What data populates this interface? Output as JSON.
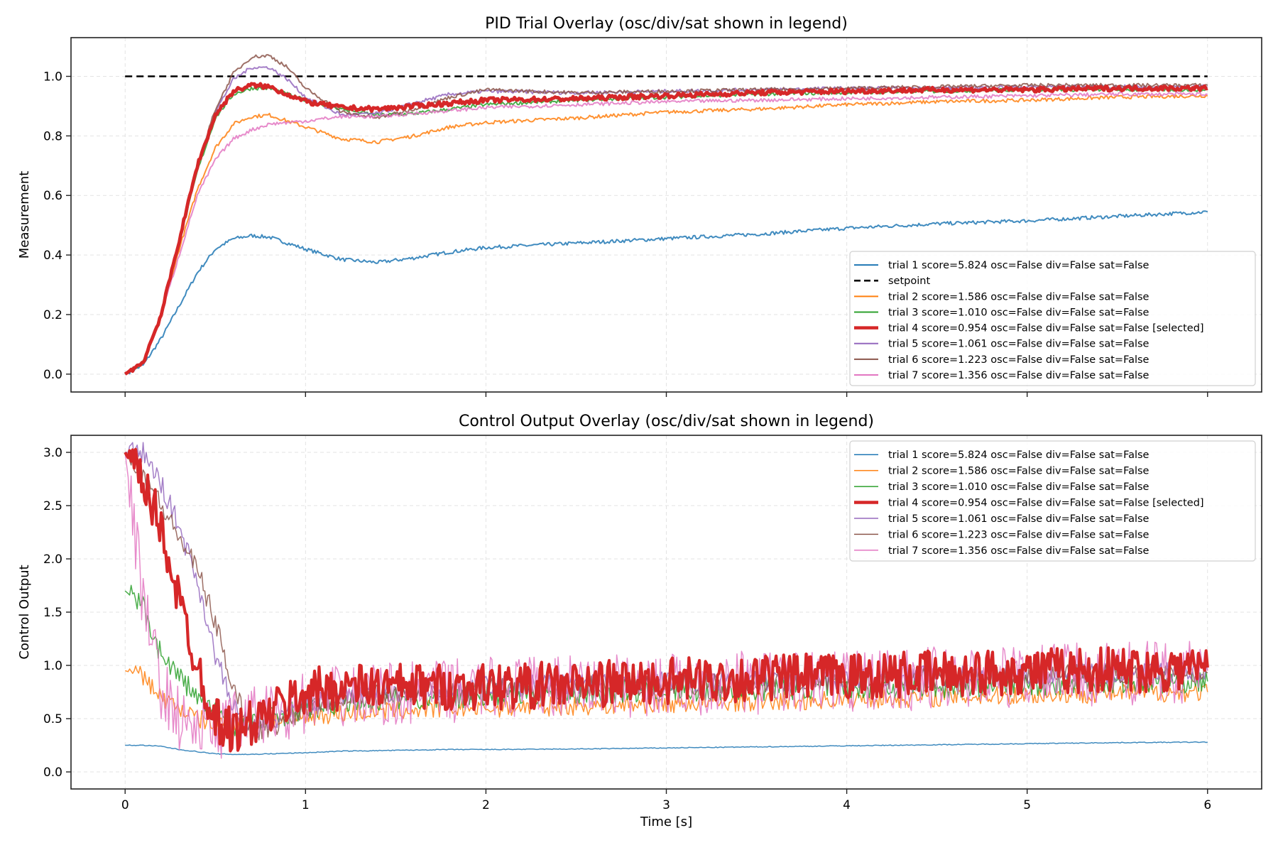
{
  "chart_data": [
    {
      "type": "line",
      "title": "PID Trial Overlay (osc/div/sat shown in legend)",
      "xlabel": "",
      "ylabel": "Measurement",
      "xlim": [
        -0.3,
        6.3
      ],
      "ylim": [
        -0.06,
        1.13
      ],
      "xticks": [
        0,
        1,
        2,
        3,
        4,
        5,
        6
      ],
      "xticklabels_shown": false,
      "yticks": [
        0.0,
        0.2,
        0.4,
        0.6,
        0.8,
        1.0
      ],
      "ytick_labels": [
        "0.0",
        "0.2",
        "0.4",
        "0.6",
        "0.8",
        "1.0"
      ],
      "grid": true,
      "legend_placement": "lower-right",
      "x": [
        0,
        0.1,
        0.2,
        0.3,
        0.4,
        0.5,
        0.6,
        0.7,
        0.8,
        0.9,
        1.0,
        1.2,
        1.4,
        1.6,
        1.8,
        2.0,
        2.5,
        3.0,
        3.5,
        4.0,
        4.5,
        5.0,
        5.5,
        6.0
      ],
      "series": [
        {
          "name": "trial 1 score=5.824 osc=False div=False sat=False",
          "color": "#1f77b4",
          "values": [
            0,
            0.03,
            0.12,
            0.23,
            0.34,
            0.42,
            0.455,
            0.465,
            0.46,
            0.44,
            0.42,
            0.385,
            0.375,
            0.39,
            0.41,
            0.425,
            0.44,
            0.455,
            0.47,
            0.49,
            0.505,
            0.515,
            0.53,
            0.545
          ]
        },
        {
          "name": "setpoint",
          "color": "#000000",
          "style": "dashed",
          "values": [
            1,
            1,
            1,
            1,
            1,
            1,
            1,
            1,
            1,
            1,
            1,
            1,
            1,
            1,
            1,
            1,
            1,
            1,
            1,
            1,
            1,
            1,
            1,
            1
          ]
        },
        {
          "name": "trial 2 score=1.586 osc=False div=False sat=False",
          "color": "#ff7f0e",
          "values": [
            0,
            0.04,
            0.2,
            0.42,
            0.62,
            0.76,
            0.84,
            0.865,
            0.87,
            0.85,
            0.83,
            0.79,
            0.78,
            0.8,
            0.83,
            0.845,
            0.86,
            0.88,
            0.89,
            0.905,
            0.915,
            0.92,
            0.93,
            0.935
          ]
        },
        {
          "name": "trial 3 score=1.010 osc=False div=False sat=False",
          "color": "#2ca02c",
          "values": [
            0,
            0.04,
            0.2,
            0.44,
            0.68,
            0.86,
            0.94,
            0.96,
            0.96,
            0.94,
            0.92,
            0.89,
            0.87,
            0.875,
            0.89,
            0.905,
            0.92,
            0.93,
            0.94,
            0.945,
            0.95,
            0.955,
            0.955,
            0.955
          ]
        },
        {
          "name": "trial 4 score=0.954 osc=False div=False sat=False [selected]",
          "color": "#d62728",
          "selected": true,
          "values": [
            0,
            0.04,
            0.2,
            0.45,
            0.7,
            0.87,
            0.95,
            0.97,
            0.965,
            0.94,
            0.915,
            0.895,
            0.89,
            0.9,
            0.91,
            0.92,
            0.925,
            0.935,
            0.945,
            0.95,
            0.955,
            0.955,
            0.96,
            0.96
          ]
        },
        {
          "name": "trial 5 score=1.061 osc=False div=False sat=False",
          "color": "#9467bd",
          "values": [
            0,
            0.04,
            0.2,
            0.45,
            0.7,
            0.88,
            0.99,
            1.03,
            1.03,
            0.99,
            0.93,
            0.87,
            0.875,
            0.91,
            0.94,
            0.95,
            0.945,
            0.95,
            0.955,
            0.96,
            0.96,
            0.965,
            0.965,
            0.965
          ]
        },
        {
          "name": "trial 6 score=1.223 osc=False div=False sat=False",
          "color": "#8c564b",
          "values": [
            0,
            0.04,
            0.2,
            0.45,
            0.7,
            0.89,
            1.01,
            1.065,
            1.07,
            1.03,
            0.96,
            0.88,
            0.86,
            0.89,
            0.93,
            0.955,
            0.945,
            0.95,
            0.955,
            0.96,
            0.965,
            0.97,
            0.97,
            0.97
          ]
        },
        {
          "name": "trial 7 score=1.356 osc=False div=False sat=False",
          "color": "#e377c2",
          "values": [
            0,
            0.04,
            0.2,
            0.4,
            0.6,
            0.72,
            0.79,
            0.82,
            0.84,
            0.845,
            0.85,
            0.865,
            0.865,
            0.875,
            0.885,
            0.895,
            0.905,
            0.915,
            0.92,
            0.925,
            0.93,
            0.935,
            0.94,
            0.94
          ]
        }
      ]
    },
    {
      "type": "line",
      "title": "Control Output Overlay (osc/div/sat shown in legend)",
      "xlabel": "Time [s]",
      "ylabel": "Control Output",
      "xlim": [
        -0.3,
        6.3
      ],
      "ylim": [
        -0.16,
        3.16
      ],
      "xticks": [
        0,
        1,
        2,
        3,
        4,
        5,
        6
      ],
      "xtick_labels": [
        "0",
        "1",
        "2",
        "3",
        "4",
        "5",
        "6"
      ],
      "yticks": [
        0.0,
        0.5,
        1.0,
        1.5,
        2.0,
        2.5,
        3.0
      ],
      "ytick_labels": [
        "0.0",
        "0.5",
        "1.0",
        "1.5",
        "2.0",
        "2.5",
        "3.0"
      ],
      "grid": true,
      "legend_placement": "upper-right",
      "x": [
        0,
        0.1,
        0.2,
        0.3,
        0.4,
        0.5,
        0.6,
        0.7,
        0.8,
        0.9,
        1.0,
        1.2,
        1.4,
        1.6,
        1.8,
        2.0,
        2.5,
        3.0,
        3.5,
        4.0,
        4.5,
        5.0,
        5.5,
        6.0
      ],
      "series": [
        {
          "name": "trial 1 score=5.824 osc=False div=False sat=False",
          "color": "#1f77b4",
          "values": [
            0.25,
            0.25,
            0.24,
            0.21,
            0.19,
            0.17,
            0.165,
            0.165,
            0.17,
            0.175,
            0.18,
            0.195,
            0.2,
            0.205,
            0.21,
            0.21,
            0.215,
            0.225,
            0.235,
            0.245,
            0.255,
            0.265,
            0.275,
            0.28
          ]
        },
        {
          "name": "trial 2 score=1.586 osc=False div=False sat=False",
          "color": "#ff7f0e",
          "values": [
            0.95,
            0.9,
            0.7,
            0.6,
            0.5,
            0.45,
            0.45,
            0.45,
            0.48,
            0.5,
            0.52,
            0.55,
            0.57,
            0.58,
            0.6,
            0.6,
            0.62,
            0.64,
            0.66,
            0.68,
            0.7,
            0.72,
            0.74,
            0.75
          ]
        },
        {
          "name": "trial 3 score=1.010 osc=False div=False sat=False",
          "color": "#2ca02c",
          "values": [
            1.7,
            1.55,
            1.1,
            0.9,
            0.7,
            0.55,
            0.45,
            0.45,
            0.5,
            0.55,
            0.6,
            0.65,
            0.68,
            0.7,
            0.7,
            0.72,
            0.74,
            0.76,
            0.78,
            0.8,
            0.8,
            0.82,
            0.84,
            0.85
          ]
        },
        {
          "name": "trial 4 score=0.954 osc=False div=False sat=False [selected]",
          "color": "#d62728",
          "selected": true,
          "values": [
            3.0,
            2.7,
            2.3,
            1.6,
            1.0,
            0.5,
            0.38,
            0.45,
            0.55,
            0.65,
            0.75,
            0.8,
            0.8,
            0.8,
            0.8,
            0.8,
            0.82,
            0.85,
            0.88,
            0.9,
            0.92,
            0.95,
            0.96,
            0.98
          ]
        },
        {
          "name": "trial 5 score=1.061 osc=False div=False sat=False",
          "color": "#9467bd",
          "values": [
            3.0,
            3.0,
            2.7,
            2.3,
            1.8,
            1.1,
            0.6,
            0.4,
            0.45,
            0.55,
            0.65,
            0.72,
            0.75,
            0.76,
            0.78,
            0.8,
            0.82,
            0.84,
            0.86,
            0.88,
            0.9,
            0.92,
            0.93,
            0.95
          ]
        },
        {
          "name": "trial 6 score=1.223 osc=False div=False sat=False",
          "color": "#8c564b",
          "values": [
            3.0,
            2.8,
            2.5,
            2.2,
            1.9,
            1.4,
            0.8,
            0.4,
            0.4,
            0.5,
            0.6,
            0.7,
            0.73,
            0.75,
            0.77,
            0.78,
            0.8,
            0.82,
            0.84,
            0.86,
            0.88,
            0.9,
            0.92,
            0.93
          ]
        },
        {
          "name": "trial 7 score=1.356 osc=False div=False sat=False",
          "color": "#e377c2",
          "values": [
            3.0,
            1.6,
            0.8,
            0.5,
            0.4,
            0.4,
            0.45,
            0.5,
            0.55,
            0.6,
            0.65,
            0.7,
            0.72,
            0.74,
            0.76,
            0.78,
            0.8,
            0.82,
            0.84,
            0.86,
            0.88,
            0.9,
            0.92,
            0.95
          ]
        }
      ]
    }
  ]
}
